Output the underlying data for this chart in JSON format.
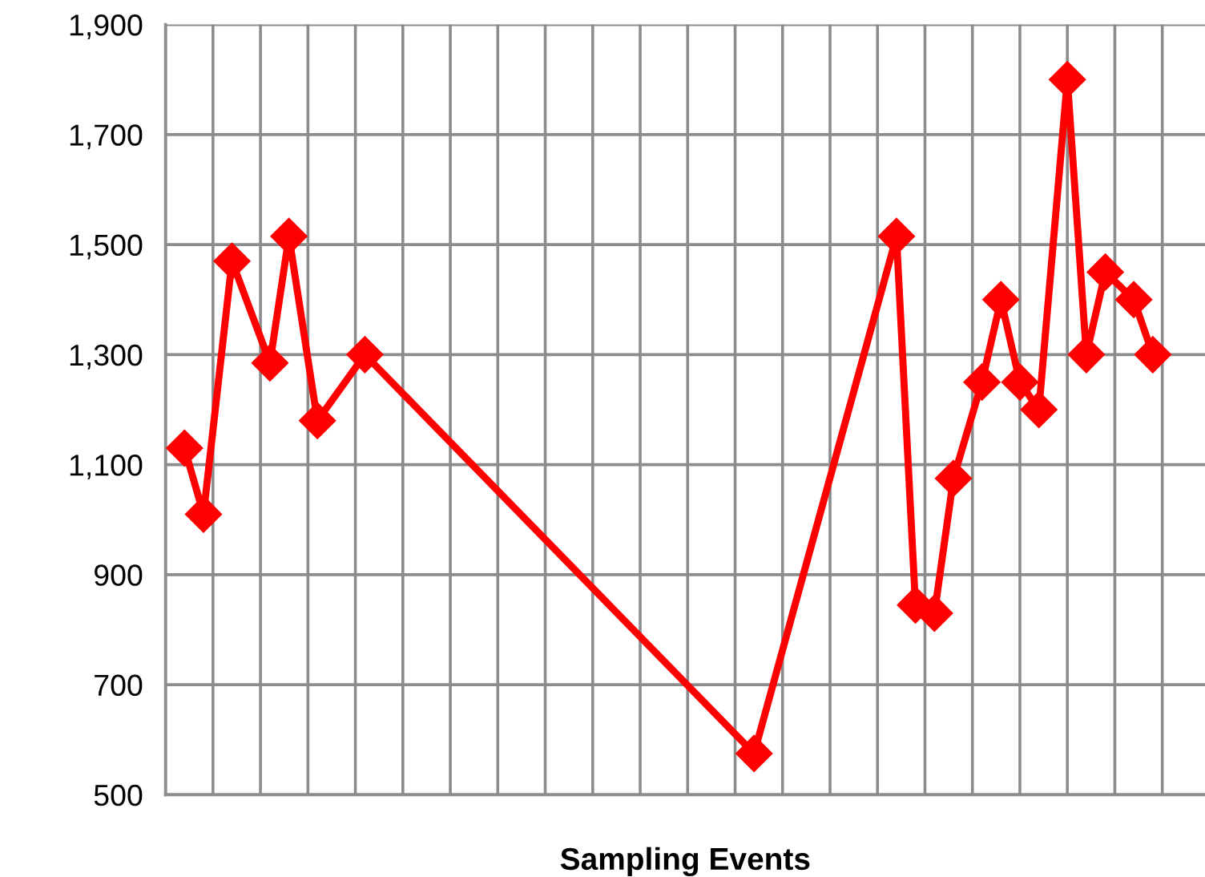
{
  "chart_data": {
    "type": "line",
    "xlabel": "Sampling Events",
    "categories": [
      null,
      null,
      null,
      null,
      null,
      null,
      null,
      null,
      null,
      null,
      null,
      null,
      null,
      null,
      null,
      null,
      null,
      null,
      null,
      null,
      null,
      null,
      null,
      null,
      null,
      null,
      null,
      null,
      null,
      null,
      null,
      null,
      null,
      null,
      null,
      null,
      null,
      null,
      null,
      null,
      null,
      null,
      null,
      null,
      null,
      null,
      null,
      null,
      null,
      null,
      null,
      null,
      null,
      null,
      null,
      null,
      null,
      null,
      null,
      null,
      null,
      null,
      null,
      null,
      null,
      null,
      null,
      null,
      null,
      null,
      null,
      null,
      null,
      null,
      null,
      null,
      null,
      null,
      null,
      null,
      null,
      null,
      null,
      null,
      null,
      null,
      null,
      null,
      null,
      null,
      null,
      null,
      null,
      null,
      null,
      null,
      null,
      null,
      null,
      null,
      null,
      null,
      null,
      null,
      null,
      null,
      null,
      null,
      null,
      null
    ],
    "series": [
      {
        "color": "#ff0000",
        "values": [
          null,
          null,
          1130,
          null,
          1010,
          null,
          null,
          1470,
          null,
          null,
          null,
          1285,
          null,
          1515,
          null,
          null,
          1180,
          null,
          null,
          null,
          null,
          1300,
          null,
          null,
          null,
          null,
          null,
          null,
          null,
          null,
          null,
          null,
          null,
          null,
          null,
          null,
          null,
          null,
          null,
          null,
          null,
          null,
          null,
          null,
          null,
          null,
          null,
          null,
          null,
          null,
          null,
          null,
          null,
          null,
          null,
          null,
          null,
          null,
          null,
          null,
          null,
          null,
          575,
          null,
          null,
          null,
          null,
          null,
          null,
          null,
          null,
          null,
          null,
          null,
          null,
          null,
          null,
          1515,
          null,
          845,
          null,
          830,
          null,
          1075,
          null,
          null,
          1250,
          null,
          1400,
          null,
          1250,
          null,
          1200,
          null,
          null,
          1800,
          null,
          1300,
          null,
          1450,
          null,
          null,
          1400,
          null,
          1300,
          null,
          null,
          null,
          null,
          null
        ]
      }
    ],
    "ylim": [
      500,
      1900
    ],
    "yticks": [
      {
        "value": 500,
        "label": "500"
      },
      {
        "value": 700,
        "label": "700"
      },
      {
        "value": 900,
        "label": "900"
      },
      {
        "value": 1100,
        "label": "1,100"
      },
      {
        "value": 1300,
        "label": "1,300"
      },
      {
        "value": 1500,
        "label": "1,500"
      },
      {
        "value": 1700,
        "label": "1,700"
      },
      {
        "value": 1900,
        "label": "1,900"
      }
    ],
    "grid": true,
    "marker": "diamond",
    "line_style": "solid"
  }
}
